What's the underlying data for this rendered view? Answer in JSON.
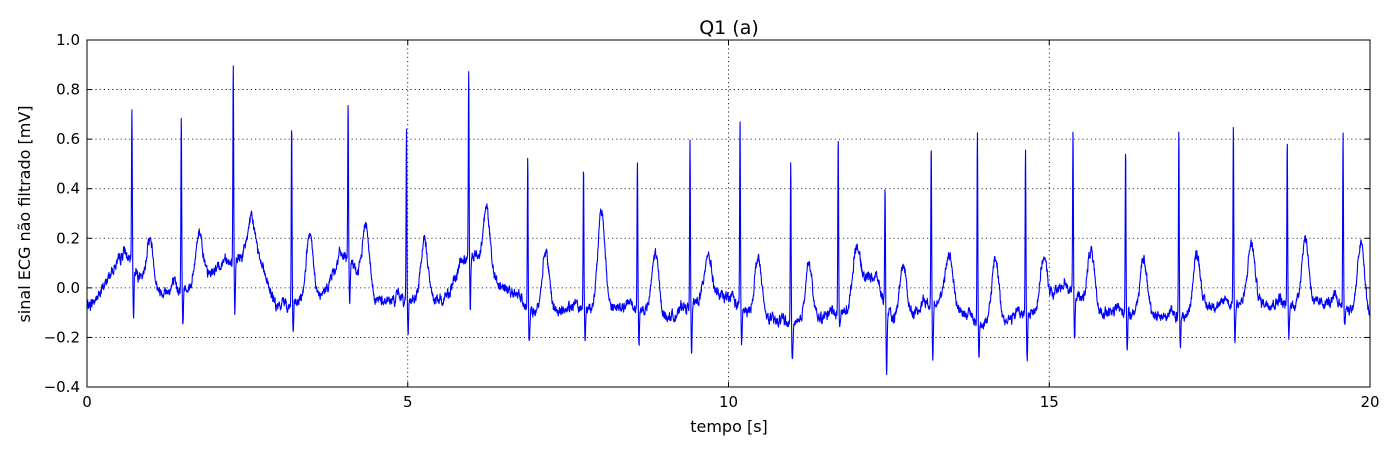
{
  "chart_data": {
    "type": "line",
    "title": "Q1 (a)",
    "xlabel": "tempo [s]",
    "ylabel": "sinal ECG não filtrado [mV]",
    "xlim": [
      0,
      20
    ],
    "ylim": [
      -0.4,
      1.0
    ],
    "xticks": [
      0,
      5,
      10,
      15,
      20
    ],
    "xtick_labels": [
      "0",
      "5",
      "10",
      "15",
      "20"
    ],
    "yticks": [
      -0.4,
      -0.2,
      0.0,
      0.2,
      0.4,
      0.6,
      0.8,
      1.0
    ],
    "ytick_labels": [
      "−0.4",
      "−0.2",
      "0.0",
      "0.2",
      "0.4",
      "0.6",
      "0.8",
      "1.0"
    ],
    "grid": true,
    "line_color": "#0000ff",
    "series": [
      {
        "beats_s": [
          0.7,
          1.47,
          2.28,
          3.19,
          4.07,
          4.98,
          5.95,
          6.87,
          7.74,
          8.58,
          9.4,
          10.18,
          10.97,
          11.71,
          12.44,
          13.16,
          13.88,
          14.63,
          15.37,
          16.19,
          17.02,
          17.87,
          18.71,
          19.58
        ],
        "r_peak_mv": [
          0.74,
          0.69,
          0.89,
          0.67,
          0.75,
          0.65,
          0.86,
          0.55,
          0.5,
          0.52,
          0.59,
          0.68,
          0.52,
          0.61,
          0.43,
          0.56,
          0.63,
          0.55,
          0.63,
          0.58,
          0.64,
          0.66,
          0.59,
          0.62
        ],
        "s_trough_mv": [
          -0.1,
          -0.15,
          -0.12,
          -0.18,
          -0.05,
          -0.17,
          -0.1,
          -0.21,
          -0.22,
          -0.22,
          -0.27,
          -0.22,
          -0.3,
          -0.15,
          -0.32,
          -0.28,
          -0.26,
          -0.3,
          -0.22,
          -0.25,
          -0.22,
          -0.22,
          -0.21,
          -0.15
        ],
        "t_wave_mv": [
          0.2,
          0.23,
          0.28,
          0.21,
          0.26,
          0.19,
          0.32,
          0.15,
          0.31,
          0.14,
          0.14,
          0.12,
          0.1,
          0.17,
          0.09,
          0.14,
          0.12,
          0.12,
          0.15,
          0.11,
          0.14,
          0.18,
          0.2,
          0.18
        ],
        "baseline_points": [
          [
            0.0,
            -0.07
          ],
          [
            0.6,
            0.12
          ],
          [
            1.0,
            -0.02
          ],
          [
            1.6,
            0.0
          ],
          [
            2.2,
            0.1
          ],
          [
            2.6,
            0.15
          ],
          [
            3.0,
            -0.08
          ],
          [
            3.6,
            -0.04
          ],
          [
            4.0,
            0.12
          ],
          [
            4.5,
            -0.05
          ],
          [
            5.0,
            -0.05
          ],
          [
            5.5,
            -0.05
          ],
          [
            6.0,
            0.13
          ],
          [
            6.5,
            0.0
          ],
          [
            7.0,
            -0.1
          ],
          [
            7.8,
            -0.08
          ],
          [
            8.5,
            -0.08
          ],
          [
            9.0,
            -0.12
          ],
          [
            9.8,
            -0.03
          ],
          [
            10.5,
            -0.12
          ],
          [
            11.0,
            -0.15
          ],
          [
            11.8,
            -0.1
          ],
          [
            12.2,
            0.05
          ],
          [
            12.6,
            -0.13
          ],
          [
            13.3,
            -0.05
          ],
          [
            14.0,
            -0.15
          ],
          [
            14.8,
            -0.1
          ],
          [
            15.2,
            0.0
          ],
          [
            15.8,
            -0.1
          ],
          [
            16.4,
            -0.1
          ],
          [
            17.0,
            -0.12
          ],
          [
            17.6,
            -0.07
          ],
          [
            18.2,
            -0.06
          ],
          [
            18.8,
            -0.07
          ],
          [
            19.4,
            -0.06
          ],
          [
            20.0,
            -0.12
          ]
        ]
      }
    ]
  }
}
